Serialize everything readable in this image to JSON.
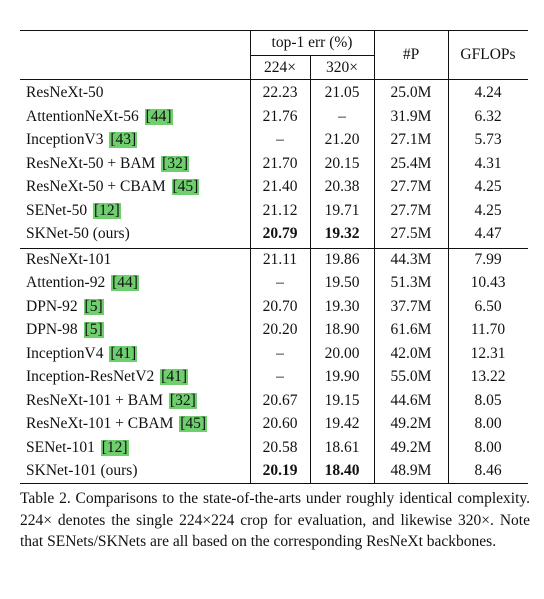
{
  "header": {
    "group_label": "top-1 err (%)",
    "col_224": "224×",
    "col_320": "320×",
    "col_params": "#P",
    "col_gflops": "GFLOPs"
  },
  "rows": [
    {
      "method": "ResNeXt-50",
      "cite": "",
      "e224": "22.23",
      "e320": "21.05",
      "params": "25.0M",
      "gflops": "4.24"
    },
    {
      "method": "AttentionNeXt-56",
      "cite": "[44]",
      "e224": "21.76",
      "e320": "–",
      "params": "31.9M",
      "gflops": "6.32"
    },
    {
      "method": "InceptionV3",
      "cite": "[43]",
      "e224": "–",
      "e320": "21.20",
      "params": "27.1M",
      "gflops": "5.73"
    },
    {
      "method": "ResNeXt-50 + BAM",
      "cite": "[32]",
      "e224": "21.70",
      "e320": "20.15",
      "params": "25.4M",
      "gflops": "4.31"
    },
    {
      "method": "ResNeXt-50 + CBAM",
      "cite": "[45]",
      "e224": "21.40",
      "e320": "20.38",
      "params": "27.7M",
      "gflops": "4.25"
    },
    {
      "method": "SENet-50",
      "cite": "[12]",
      "e224": "21.12",
      "e320": "19.71",
      "params": "27.7M",
      "gflops": "4.25"
    },
    {
      "method": "SKNet-50 (ours)",
      "cite": "",
      "e224": "20.79",
      "e320": "19.32",
      "params": "27.5M",
      "gflops": "4.47",
      "bold_errors": true
    },
    {
      "method": "ResNeXt-101",
      "cite": "",
      "e224": "21.11",
      "e320": "19.86",
      "params": "44.3M",
      "gflops": "7.99"
    },
    {
      "method": "Attention-92",
      "cite": "[44]",
      "e224": "–",
      "e320": "19.50",
      "params": "51.3M",
      "gflops": "10.43"
    },
    {
      "method": "DPN-92",
      "cite": "[5]",
      "e224": "20.70",
      "e320": "19.30",
      "params": "37.7M",
      "gflops": "6.50"
    },
    {
      "method": "DPN-98",
      "cite": "[5]",
      "e224": "20.20",
      "e320": "18.90",
      "params": "61.6M",
      "gflops": "11.70"
    },
    {
      "method": "InceptionV4",
      "cite": "[41]",
      "e224": "–",
      "e320": "20.00",
      "params": "42.0M",
      "gflops": "12.31"
    },
    {
      "method": "Inception-ResNetV2",
      "cite": "[41]",
      "e224": "–",
      "e320": "19.90",
      "params": "55.0M",
      "gflops": "13.22"
    },
    {
      "method": "ResNeXt-101 + BAM",
      "cite": "[32]",
      "e224": "20.67",
      "e320": "19.15",
      "params": "44.6M",
      "gflops": "8.05"
    },
    {
      "method": "ResNeXt-101 + CBAM",
      "cite": "[45]",
      "e224": "20.60",
      "e320": "19.42",
      "params": "49.2M",
      "gflops": "8.00"
    },
    {
      "method": "SENet-101",
      "cite": "[12]",
      "e224": "20.58",
      "e320": "18.61",
      "params": "49.2M",
      "gflops": "8.00"
    },
    {
      "method": "SKNet-101 (ours)",
      "cite": "",
      "e224": "20.19",
      "e320": "18.40",
      "params": "48.9M",
      "gflops": "8.46",
      "bold_errors": true
    }
  ],
  "caption": "Table 2. Comparisons to the state-of-the-arts under roughly identical complexity. 224× denotes the single 224×224 crop for evaluation, and likewise 320×. Note that SENets/SKNets are all based on the corresponding ResNeXt backbones.",
  "colors": {
    "citation_highlight": "#6fcf6f"
  }
}
